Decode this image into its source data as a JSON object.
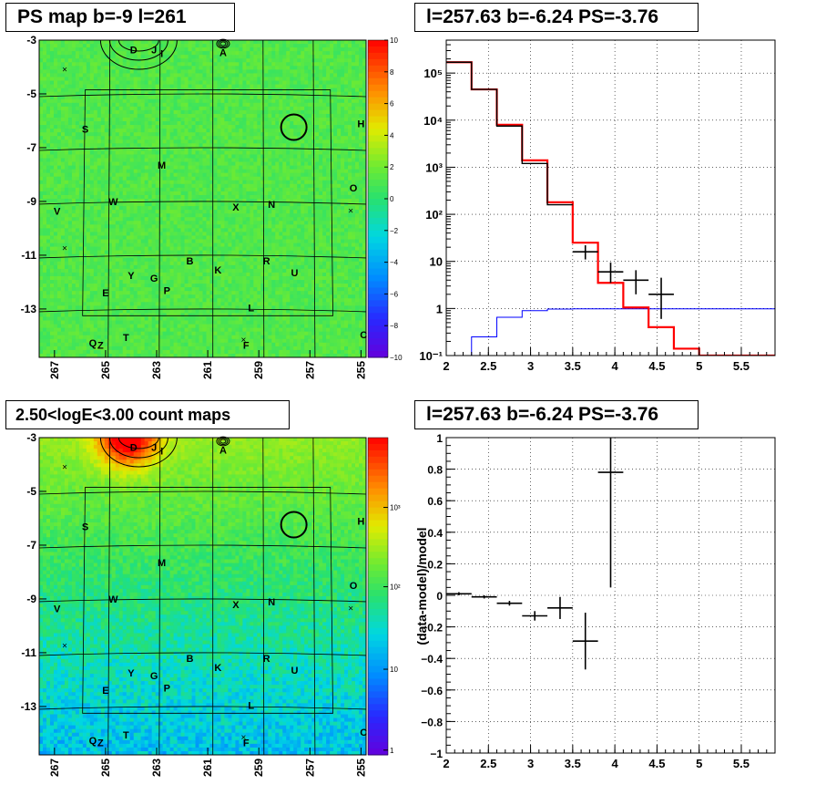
{
  "titles": {
    "map_top": "PS map b=-9 l=261",
    "spec_top": "l=257.63 b=-6.24 PS=-3.76",
    "map_bottom": "2.50<logE<3.00 count maps",
    "resid_bottom": "l=257.63 b=-6.24 PS=-3.76"
  },
  "maps": {
    "x_ticks": [
      "267",
      "265",
      "263",
      "261",
      "259",
      "257",
      "255"
    ],
    "y_ticks": [
      "-3",
      "-5",
      "-7",
      "-9",
      "-11",
      "-13"
    ],
    "sources": [
      {
        "label": "D",
        "l": 263.9,
        "b": -3.35
      },
      {
        "label": "J",
        "l": 263.1,
        "b": -3.35
      },
      {
        "label": "I",
        "l": 262.8,
        "b": -3.5
      },
      {
        "label": "A",
        "l": 260.4,
        "b": -3.45
      },
      {
        "label": "S",
        "l": 265.8,
        "b": -6.3
      },
      {
        "label": "H",
        "l": 255.0,
        "b": -6.1
      },
      {
        "label": "M",
        "l": 262.8,
        "b": -7.65
      },
      {
        "label": "O",
        "l": 255.3,
        "b": -8.5
      },
      {
        "label": "W",
        "l": 264.7,
        "b": -9.0
      },
      {
        "label": "V",
        "l": 266.9,
        "b": -9.35
      },
      {
        "label": "X",
        "l": 259.9,
        "b": -9.2
      },
      {
        "label": "N",
        "l": 258.5,
        "b": -9.1
      },
      {
        "label": "B",
        "l": 261.7,
        "b": -11.2
      },
      {
        "label": "K",
        "l": 260.6,
        "b": -11.55
      },
      {
        "label": "R",
        "l": 258.7,
        "b": -11.2
      },
      {
        "label": "Y",
        "l": 264.0,
        "b": -11.75
      },
      {
        "label": "G",
        "l": 263.1,
        "b": -11.85
      },
      {
        "label": "U",
        "l": 257.6,
        "b": -11.65
      },
      {
        "label": "P",
        "l": 262.6,
        "b": -12.3
      },
      {
        "label": "E",
        "l": 265.0,
        "b": -12.4
      },
      {
        "label": "L",
        "l": 259.3,
        "b": -12.95
      },
      {
        "label": "T",
        "l": 264.2,
        "b": -14.05
      },
      {
        "label": "Q",
        "l": 265.5,
        "b": -14.25
      },
      {
        "label": "Z",
        "l": 265.2,
        "b": -14.35
      },
      {
        "label": "F",
        "l": 259.5,
        "b": -14.35
      },
      {
        "label": "C",
        "l": 254.9,
        "b": -13.95
      }
    ],
    "target_l": 257.63,
    "target_b": -6.24,
    "top_colorbar_ticks": [
      "10",
      "8",
      "6",
      "4",
      "2",
      "0",
      "−2",
      "−4",
      "−6",
      "−8",
      "−10"
    ],
    "bottom_colorbar_ticks": [
      "10³",
      "10²",
      "10",
      "1"
    ]
  },
  "chart_data": [
    {
      "type": "line",
      "title": "l=257.63 b=-6.24 PS=-3.76",
      "x_ticks": [
        "2",
        "2.5",
        "3",
        "3.5",
        "4",
        "4.5",
        "5",
        "5.5"
      ],
      "y_ticks": [
        "10⁻¹",
        "1",
        "10",
        "10²",
        "10³",
        "10⁴",
        "10⁵"
      ],
      "xlim": [
        2.0,
        5.9
      ],
      "ylim_log10": [
        -1,
        5.7
      ],
      "grid": true,
      "edges": [
        2.0,
        2.3,
        2.6,
        2.9,
        3.2,
        3.5,
        3.8,
        4.1,
        4.4,
        4.7,
        5.0,
        5.9
      ],
      "series": [
        {
          "role": "model",
          "color": "#ff0000",
          "values": [
            170000,
            45000,
            8000,
            1400,
            180,
            25,
            3.5,
            1.05,
            0.4,
            0.14,
            0.1
          ]
        },
        {
          "role": "data",
          "color": "#000000",
          "values": [
            170000,
            45000,
            7500,
            1200,
            160
          ]
        },
        {
          "role": "background",
          "color": "#0000ff",
          "values": [
            0.05,
            0.25,
            0.65,
            0.9,
            0.97,
            0.98,
            0.98,
            0.98,
            0.98,
            0.98,
            0.98
          ]
        }
      ],
      "points": [
        {
          "x": 3.65,
          "y": 16,
          "xerr": 0.15,
          "ylo": 11,
          "yhi": 22
        },
        {
          "x": 3.95,
          "y": 6,
          "xerr": 0.15,
          "ylo": 3.5,
          "yhi": 9.5
        },
        {
          "x": 4.25,
          "y": 4,
          "xerr": 0.15,
          "ylo": 2,
          "yhi": 6.5
        },
        {
          "x": 4.55,
          "y": 2,
          "xerr": 0.15,
          "ylo": 0.6,
          "yhi": 4.5
        }
      ]
    },
    {
      "type": "scatter",
      "title": "l=257.63 b=-6.24 PS=-3.76",
      "ylabel": "(data-model)/model",
      "x_ticks": [
        "2",
        "2.5",
        "3",
        "3.5",
        "4",
        "4.5",
        "5",
        "5.5"
      ],
      "y_ticks": [
        "−1",
        "−0.8",
        "−0.6",
        "−0.4",
        "−0.2",
        "0",
        "0.2",
        "0.4",
        "0.6",
        "0.8",
        "1"
      ],
      "xlim": [
        2.0,
        5.9
      ],
      "ylim": [
        -1.0,
        1.0
      ],
      "grid": true,
      "points": [
        {
          "x": 2.15,
          "y": 0.01,
          "xerr": 0.15,
          "ylo": 0.0,
          "yhi": 0.02
        },
        {
          "x": 2.45,
          "y": -0.01,
          "xerr": 0.15,
          "ylo": -0.02,
          "yhi": 0.0
        },
        {
          "x": 2.75,
          "y": -0.05,
          "xerr": 0.15,
          "ylo": -0.065,
          "yhi": -0.035
        },
        {
          "x": 3.05,
          "y": -0.13,
          "xerr": 0.15,
          "ylo": -0.16,
          "yhi": -0.1
        },
        {
          "x": 3.35,
          "y": -0.08,
          "xerr": 0.15,
          "ylo": -0.15,
          "yhi": -0.01
        },
        {
          "x": 3.65,
          "y": -0.29,
          "xerr": 0.15,
          "ylo": -0.47,
          "yhi": -0.11
        },
        {
          "x": 3.95,
          "y": 0.78,
          "xerr": 0.15,
          "ylo": 0.05,
          "yhi": 1.0
        }
      ]
    }
  ]
}
